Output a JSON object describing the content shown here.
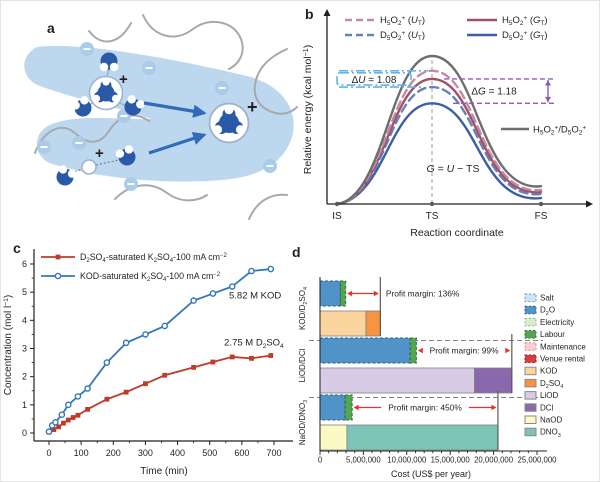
{
  "panels": {
    "a": {
      "label": "a"
    },
    "b": {
      "label": "b"
    },
    "c": {
      "label": "c"
    },
    "d": {
      "label": "d"
    }
  },
  "panel_a": {
    "plus_sign": "+"
  },
  "chart_data": [
    {
      "id": "b",
      "type": "line",
      "title": "",
      "xlabel": "Reaction coordinate",
      "ylabel": "Relative energy (kcal mol^{−1})",
      "x_ticks": [
        "IS",
        "TS",
        "FS"
      ],
      "grid": false,
      "series": [
        {
          "name": "H_{5}O_{2}^{+}/D_{5}O_{2}^{+}",
          "color": "#6d6e71",
          "dash": "solid",
          "peak": 1.0,
          "end": 0.12
        },
        {
          "name": "H_{5}O_{2}^{+} (*{U}_{T})",
          "color": "#c58ba1",
          "dash": "dashed",
          "peak": 0.9,
          "end": 0.095
        },
        {
          "name": "H_{5}O_{2}^{+} (*{G}_{T})",
          "color": "#a05068",
          "dash": "solid",
          "peak": 0.845,
          "end": 0.082
        },
        {
          "name": "D_{5}O_{2}^{+} (*{U}_{T})",
          "color": "#6781b8",
          "dash": "dashed",
          "peak": 0.79,
          "end": 0.068
        },
        {
          "name": "D_{5}O_{2}^{+} (*{G}_{T})",
          "color": "#3d5fa6",
          "dash": "solid",
          "peak": 0.68,
          "end": 0.04
        }
      ],
      "annotations": {
        "delta_u": "Δ*{U} = 1.08",
        "delta_g": "Δ*{G} = 1.18",
        "equation": "*{G} = *{U} − TS",
        "inline_series_label": "H_{5}O_{2}^{+}/D_{5}O_{2}^{+}"
      },
      "colors": {
        "delta_u": "#63b5e5",
        "delta_g": "#8f5bb5"
      }
    },
    {
      "id": "c",
      "type": "line",
      "title": "",
      "xlabel": "Time (min)",
      "ylabel": "Concentration (mol l^{−1})",
      "xlim": [
        0,
        700
      ],
      "ylim": [
        0,
        6
      ],
      "x_tick_step": 100,
      "y_tick_step": 1,
      "grid": false,
      "series": [
        {
          "name": "D_{2}SO_{4}-saturated K_{2}SO_{4}-100 mA cm^{−2}",
          "color": "#bf3b28",
          "marker": "square",
          "x": [
            0,
            15,
            30,
            45,
            60,
            75,
            90,
            120,
            180,
            240,
            300,
            360,
            450,
            510,
            570,
            630,
            690
          ],
          "y": [
            0.03,
            0.12,
            0.22,
            0.35,
            0.46,
            0.55,
            0.63,
            0.84,
            1.2,
            1.45,
            1.75,
            2.05,
            2.33,
            2.52,
            2.7,
            2.65,
            2.75
          ]
        },
        {
          "name": "KOD-saturated K_{2}SO_{4}-100 mA cm^{−2}",
          "color": "#3377b8",
          "marker": "circle-open",
          "x": [
            0,
            10,
            20,
            40,
            60,
            90,
            120,
            180,
            240,
            300,
            360,
            450,
            510,
            570,
            630,
            690
          ],
          "y": [
            0.05,
            0.27,
            0.38,
            0.65,
            1.0,
            1.3,
            1.58,
            2.5,
            3.2,
            3.5,
            3.8,
            4.7,
            4.95,
            5.2,
            5.75,
            5.82
          ]
        }
      ],
      "annotations": [
        {
          "text": "5.82 M KOD",
          "x": 560,
          "y": 4.78
        },
        {
          "text": "2.75 M D_{2}SO_{4}",
          "x": 545,
          "y": 3.1
        }
      ]
    },
    {
      "id": "d",
      "type": "bar-h-stacked",
      "title": "",
      "xlabel": "Cost (US$ per year)",
      "xlim": [
        0,
        25000000
      ],
      "x_ticks": [
        {
          "v": 0,
          "label": "0"
        },
        {
          "v": 5000000,
          "label": "5,000,000"
        },
        {
          "v": 10000000,
          "label": "10,000,000"
        },
        {
          "v": 15000000,
          "label": "15,000,000"
        },
        {
          "v": 20000000,
          "label": "20,000,000"
        },
        {
          "v": 25000000,
          "label": "25,000,000"
        }
      ],
      "arrow_color": "#e8312a",
      "legend": [
        {
          "name": "Salt",
          "fill": "#cfe3f3",
          "border": "#6f9ec7",
          "dashed": true
        },
        {
          "name": "D_{2}O",
          "fill": "#4f93c9",
          "border": "#2c5c8f",
          "dashed": true
        },
        {
          "name": "Electricity",
          "fill": "#d9eccd",
          "border": "#86c07c",
          "dashed": true
        },
        {
          "name": "Labour",
          "fill": "#55a453",
          "border": "#2e7330",
          "dashed": true
        },
        {
          "name": "Maintenance",
          "fill": "#f8cdd3",
          "border": "#e08a97",
          "dashed": true
        },
        {
          "name": "Venue rental",
          "fill": "#da3b3d",
          "border": "#9e1c22",
          "dashed": true
        },
        {
          "name": "KOD",
          "fill": "#fbd49e",
          "border": "#8a8a8a",
          "dashed": false
        },
        {
          "name": "D_{2}SO_{4}",
          "fill": "#f6953e",
          "border": "#8a8a8a",
          "dashed": false
        },
        {
          "name": "LiOD",
          "fill": "#d7cbe5",
          "border": "#8a8a8a",
          "dashed": false
        },
        {
          "name": "DCl",
          "fill": "#8a68ad",
          "border": "#8a8a8a",
          "dashed": false
        },
        {
          "name": "NaOD",
          "fill": "#fbf9c4",
          "border": "#8a8a8a",
          "dashed": false
        },
        {
          "name": "DNO_{3}",
          "fill": "#7cc4b8",
          "border": "#8a8a8a",
          "dashed": false
        }
      ],
      "groups": [
        {
          "label": "KOD/D_{2}SO_{4}",
          "profit_label": "Profit margin: 136%",
          "label_pos": "right",
          "cost": [
            {
              "name": "D_{2}O",
              "value": 2350000
            },
            {
              "name": "Labour",
              "value": 600000
            }
          ],
          "revenue": [
            {
              "name": "KOD",
              "value": 5300000
            },
            {
              "name": "D_{2}SO_{4}",
              "value": 1650000
            }
          ]
        },
        {
          "label": "LiOD/DCl",
          "profit_label": "Profit margin: 99%",
          "label_pos": "center",
          "cost": [
            {
              "name": "D_{2}O",
              "value": 10400000
            },
            {
              "name": "Labour",
              "value": 700000
            }
          ],
          "revenue": [
            {
              "name": "LiOD",
              "value": 17800000
            },
            {
              "name": "DCl",
              "value": 4300000
            }
          ]
        },
        {
          "label": "NaOD/DNO_{3}",
          "profit_label": "Profit margin: 450%",
          "label_pos": "center",
          "cost": [
            {
              "name": "D_{2}O",
              "value": 2900000
            },
            {
              "name": "Labour",
              "value": 800000
            }
          ],
          "revenue": [
            {
              "name": "NaOD",
              "value": 3100000
            },
            {
              "name": "DNO_{3}",
              "value": 17400000
            }
          ]
        }
      ]
    }
  ]
}
